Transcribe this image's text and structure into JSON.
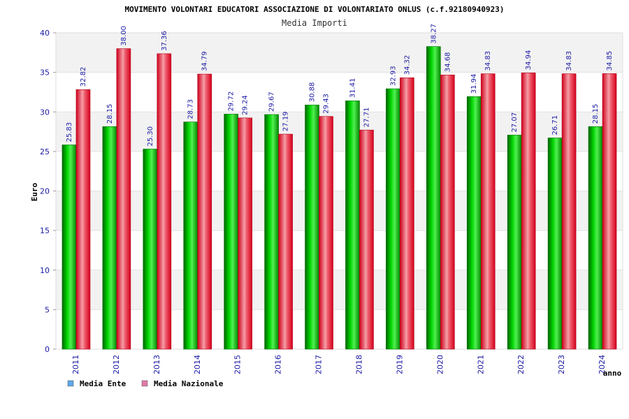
{
  "chart_data": {
    "type": "bar",
    "title": "MOVIMENTO VOLONTARI EDUCATORI ASSOCIAZIONE DI VOLONTARIATO ONLUS (c.f.92180940923)",
    "subtitle": "Media Importi",
    "xlabel": "anno",
    "ylabel": "Euro",
    "ylim": [
      0,
      40
    ],
    "yticks": [
      0,
      5,
      10,
      15,
      20,
      25,
      30,
      35,
      40
    ],
    "categories": [
      "2011",
      "2012",
      "2013",
      "2014",
      "2015",
      "2016",
      "2017",
      "2018",
      "2019",
      "2020",
      "2021",
      "2022",
      "2023",
      "2024"
    ],
    "series": [
      {
        "name": "Media Ente",
        "color": "#00b400",
        "values": [
          25.83,
          28.15,
          25.3,
          28.73,
          29.72,
          29.67,
          30.88,
          31.41,
          32.93,
          38.27,
          31.94,
          27.07,
          26.71,
          28.15
        ],
        "labels": [
          "25.83",
          "28.15",
          "25.30",
          "28.73",
          "29.72",
          "29.67",
          "30.88",
          "31.41",
          "32.93",
          "38.27",
          "31.94",
          "27.07",
          "26.71",
          "28.15"
        ]
      },
      {
        "name": "Media Nazionale",
        "color": "#e8001c",
        "values": [
          32.82,
          38.0,
          37.36,
          34.79,
          29.24,
          27.19,
          29.43,
          27.71,
          34.32,
          34.68,
          34.83,
          34.94,
          34.83,
          34.85
        ],
        "labels": [
          "32.82",
          "38.00",
          "37.36",
          "34.79",
          "29.24",
          "27.19",
          "29.43",
          "27.71",
          "34.32",
          "34.68",
          "34.83",
          "34.94",
          "34.83",
          "34.85"
        ]
      }
    ],
    "legend": [
      {
        "label": "Media Ente",
        "color": "#5fa8e8"
      },
      {
        "label": "Media Nazionale",
        "color": "#e07aa8"
      }
    ],
    "grid": true
  }
}
